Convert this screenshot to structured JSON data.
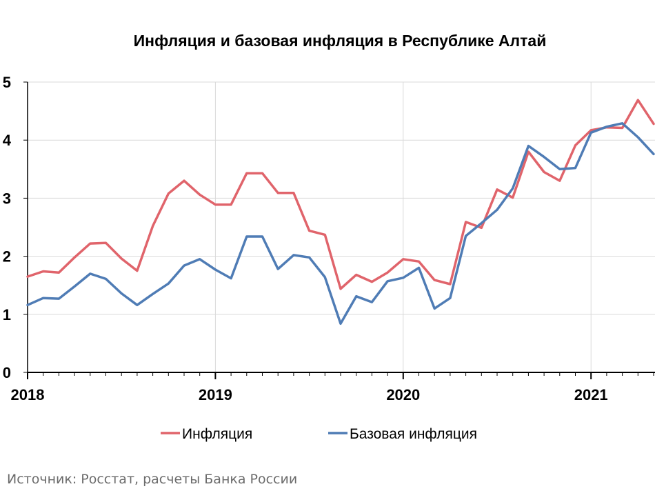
{
  "chart_data": {
    "type": "line",
    "title": "Инфляция и базовая инфляция в Республике Алтай",
    "xlabel": "",
    "ylabel": "",
    "ylim": [
      0,
      5
    ],
    "yticks": [
      0,
      1,
      2,
      3,
      4,
      5
    ],
    "xtick_labels": [
      "2018",
      "2019",
      "2020",
      "2021"
    ],
    "x": [
      "2018-01",
      "2018-02",
      "2018-03",
      "2018-04",
      "2018-05",
      "2018-06",
      "2018-07",
      "2018-08",
      "2018-09",
      "2018-10",
      "2018-11",
      "2018-12",
      "2019-01",
      "2019-02",
      "2019-03",
      "2019-04",
      "2019-05",
      "2019-06",
      "2019-07",
      "2019-08",
      "2019-09",
      "2019-10",
      "2019-11",
      "2019-12",
      "2020-01",
      "2020-02",
      "2020-03",
      "2020-04",
      "2020-05",
      "2020-06",
      "2020-07",
      "2020-08",
      "2020-09",
      "2020-10",
      "2020-11",
      "2020-12",
      "2021-01",
      "2021-02",
      "2021-03",
      "2021-04",
      "2021-05"
    ],
    "series": [
      {
        "name": "Инфляция",
        "color": "#e0646b",
        "values": [
          1.65,
          1.74,
          1.72,
          1.98,
          2.22,
          2.23,
          1.96,
          1.75,
          2.52,
          3.08,
          3.3,
          3.06,
          2.89,
          2.89,
          3.43,
          3.43,
          3.09,
          3.09,
          2.44,
          2.37,
          1.44,
          1.68,
          1.56,
          1.72,
          1.95,
          1.91,
          1.59,
          1.52,
          2.59,
          2.49,
          3.15,
          3.01,
          3.8,
          3.45,
          3.3,
          3.91,
          4.17,
          4.22,
          4.21,
          4.69,
          4.28
        ]
      },
      {
        "name": "Базовая инфляция",
        "color": "#4f7cb5",
        "values": [
          1.16,
          1.28,
          1.27,
          1.48,
          1.7,
          1.61,
          1.36,
          1.16,
          1.35,
          1.53,
          1.84,
          1.95,
          1.77,
          1.62,
          2.34,
          2.34,
          1.78,
          2.02,
          1.98,
          1.64,
          0.84,
          1.31,
          1.21,
          1.57,
          1.63,
          1.8,
          1.1,
          1.28,
          2.35,
          2.57,
          2.8,
          3.17,
          3.9,
          3.71,
          3.5,
          3.52,
          4.13,
          4.23,
          4.29,
          4.05,
          3.76
        ]
      }
    ],
    "grid": true,
    "legend": "bottom"
  },
  "source": "Источник: Росстат, расчеты Банка России"
}
